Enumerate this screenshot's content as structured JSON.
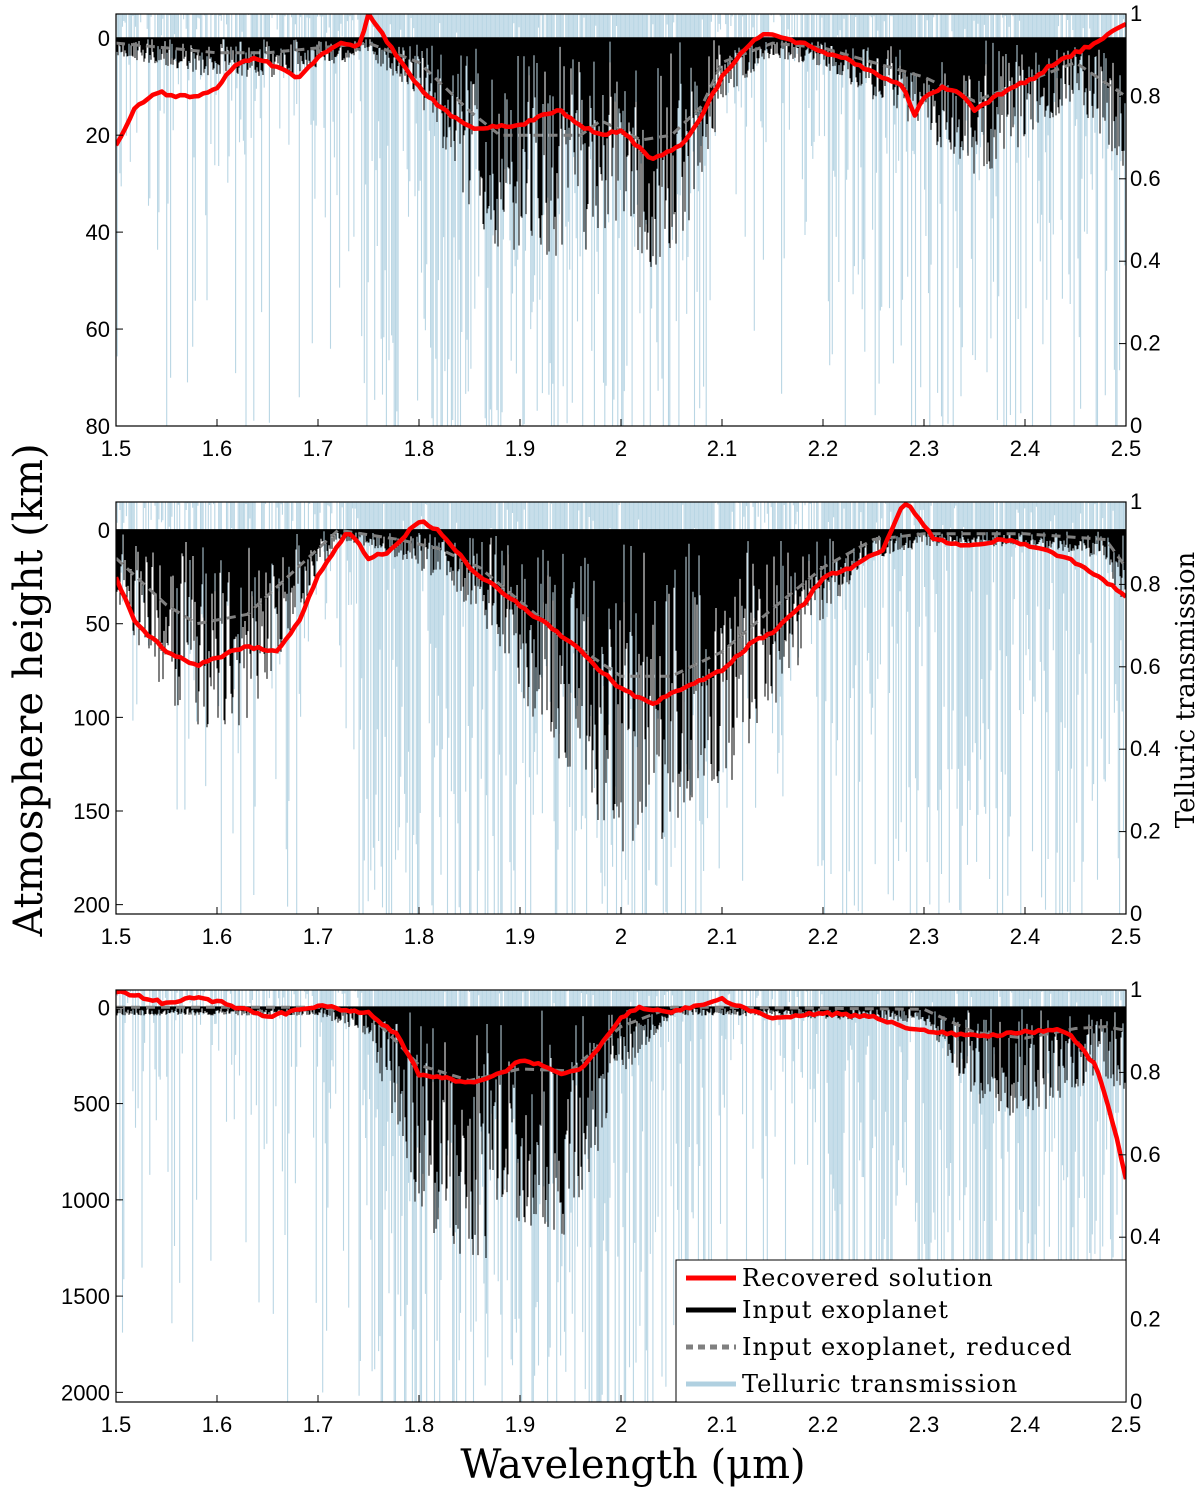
{
  "figure": {
    "ylabel_left": "Atmosphere height (km)",
    "ylabel_right": "Telluric transmission",
    "xlabel": "Wavelength (μm)"
  },
  "legend": {
    "items": [
      {
        "label": "Recovered solution",
        "color": "#ff0000",
        "style": "solid"
      },
      {
        "label": "Input exoplanet",
        "color": "#000000",
        "style": "solid"
      },
      {
        "label": "Input exoplanet, reduced",
        "color": "#808080",
        "style": "dashed"
      },
      {
        "label": "Telluric transmission",
        "color": "#b0d0e0",
        "style": "solid"
      }
    ]
  },
  "chart_data": [
    {
      "type": "line",
      "xlim": [
        1.5,
        2.5
      ],
      "xticks": [
        "1.5",
        "1.6",
        "1.7",
        "1.8",
        "1.9",
        "2",
        "2.1",
        "2.2",
        "2.3",
        "2.4",
        "2.5"
      ],
      "ylim_left": [
        80,
        -5
      ],
      "yticks_left": [
        "0",
        "20",
        "40",
        "60",
        "80"
      ],
      "ylim_right": [
        0,
        1
      ],
      "yticks_right": [
        "0",
        "0.2",
        "0.4",
        "0.6",
        "0.8",
        "1"
      ],
      "series": [
        {
          "name": "Recovered solution",
          "x": [
            1.5,
            1.52,
            1.54,
            1.56,
            1.58,
            1.6,
            1.62,
            1.64,
            1.66,
            1.68,
            1.7,
            1.72,
            1.74,
            1.75,
            1.76,
            1.78,
            1.8,
            1.82,
            1.84,
            1.86,
            1.88,
            1.9,
            1.92,
            1.94,
            1.96,
            1.98,
            2.0,
            2.02,
            2.03,
            2.06,
            2.08,
            2.1,
            2.12,
            2.14,
            2.16,
            2.18,
            2.2,
            2.22,
            2.24,
            2.26,
            2.28,
            2.29,
            2.3,
            2.32,
            2.34,
            2.35,
            2.37,
            2.39,
            2.41,
            2.43,
            2.45,
            2.47,
            2.49,
            2.5
          ],
          "y": [
            22,
            14,
            11,
            12,
            12,
            10,
            5,
            4,
            6,
            8,
            4,
            1,
            2,
            -5,
            -2,
            4,
            10,
            14,
            17,
            19,
            18,
            18,
            16,
            15,
            18,
            20,
            19,
            23,
            25,
            22,
            16,
            8,
            3,
            -1,
            0,
            1,
            3,
            4,
            6,
            8,
            10,
            16,
            12,
            10,
            12,
            15,
            12,
            10,
            8,
            5,
            3,
            1,
            -2,
            -3
          ]
        },
        {
          "name": "Input exoplanet, reduced",
          "x": [
            1.5,
            1.55,
            1.6,
            1.65,
            1.7,
            1.75,
            1.8,
            1.85,
            1.88,
            1.92,
            1.96,
            1.98,
            2.0,
            2.02,
            2.05,
            2.08,
            2.1,
            2.15,
            2.2,
            2.25,
            2.3,
            2.35,
            2.4,
            2.45,
            2.5
          ],
          "y": [
            1,
            2,
            3,
            3,
            2,
            1,
            5,
            15,
            20,
            20,
            20,
            17,
            19,
            21,
            20,
            14,
            5,
            1,
            2,
            5,
            8,
            13,
            9,
            5,
            12
          ]
        }
      ]
    },
    {
      "type": "line",
      "xlim": [
        1.5,
        2.5
      ],
      "xticks": [
        "1.5",
        "1.6",
        "1.7",
        "1.8",
        "1.9",
        "2",
        "2.1",
        "2.2",
        "2.3",
        "2.4",
        "2.5"
      ],
      "ylim_left": [
        205,
        -15
      ],
      "yticks_left": [
        "0",
        "50",
        "100",
        "150",
        "200"
      ],
      "ylim_right": [
        0,
        1
      ],
      "yticks_right": [
        "0",
        "0.2",
        "0.4",
        "0.6",
        "0.8",
        "1"
      ],
      "series": [
        {
          "name": "Recovered solution",
          "x": [
            1.5,
            1.52,
            1.55,
            1.58,
            1.6,
            1.63,
            1.66,
            1.68,
            1.7,
            1.73,
            1.75,
            1.77,
            1.8,
            1.82,
            1.85,
            1.9,
            1.95,
            2.0,
            2.03,
            2.06,
            2.1,
            2.13,
            2.15,
            2.18,
            2.2,
            2.23,
            2.26,
            2.28,
            2.29,
            2.31,
            2.34,
            2.38,
            2.42,
            2.46,
            2.5
          ],
          "y": [
            25,
            50,
            65,
            72,
            68,
            62,
            65,
            50,
            25,
            0,
            15,
            12,
            -5,
            0,
            20,
            40,
            60,
            85,
            93,
            85,
            75,
            60,
            55,
            40,
            25,
            20,
            10,
            -15,
            -10,
            5,
            8,
            5,
            10,
            20,
            35
          ]
        },
        {
          "name": "Input exoplanet, reduced",
          "x": [
            1.5,
            1.55,
            1.58,
            1.63,
            1.68,
            1.72,
            1.78,
            1.82,
            1.86,
            1.9,
            1.95,
            2.0,
            2.05,
            2.1,
            2.15,
            2.2,
            2.25,
            2.3,
            2.4,
            2.48,
            2.5
          ],
          "y": [
            15,
            40,
            50,
            45,
            20,
            0,
            5,
            10,
            20,
            38,
            60,
            78,
            78,
            65,
            42,
            20,
            5,
            2,
            2,
            5,
            20
          ]
        }
      ]
    },
    {
      "type": "line",
      "xlim": [
        1.5,
        2.5
      ],
      "xticks": [
        "1.5",
        "1.6",
        "1.7",
        "1.8",
        "1.9",
        "2",
        "2.1",
        "2.2",
        "2.3",
        "2.4",
        "2.5"
      ],
      "ylim_left": [
        2050,
        -90
      ],
      "yticks_left": [
        "0",
        "500",
        "1000",
        "1500",
        "2000"
      ],
      "ylim_right": [
        0,
        1
      ],
      "yticks_right": [
        "0",
        "0.2",
        "0.4",
        "0.6",
        "0.8",
        "1"
      ],
      "series": [
        {
          "name": "Recovered solution",
          "x": [
            1.5,
            1.52,
            1.55,
            1.58,
            1.6,
            1.62,
            1.65,
            1.7,
            1.75,
            1.78,
            1.8,
            1.85,
            1.88,
            1.9,
            1.92,
            1.94,
            1.96,
            1.98,
            2.0,
            2.02,
            2.05,
            2.08,
            2.1,
            2.12,
            2.15,
            2.2,
            2.25,
            2.28,
            2.3,
            2.35,
            2.4,
            2.44,
            2.47,
            2.49,
            2.5
          ],
          "y": [
            -80,
            -60,
            -20,
            -50,
            -30,
            0,
            50,
            -10,
            30,
            150,
            350,
            390,
            350,
            280,
            290,
            350,
            320,
            200,
            50,
            0,
            30,
            -20,
            -40,
            0,
            50,
            30,
            50,
            100,
            120,
            150,
            130,
            120,
            300,
            650,
            900
          ]
        },
        {
          "name": "Input exoplanet, reduced",
          "x": [
            1.5,
            1.6,
            1.7,
            1.75,
            1.8,
            1.85,
            1.9,
            1.95,
            2.0,
            2.05,
            2.1,
            2.2,
            2.3,
            2.35,
            2.4,
            2.45,
            2.48,
            2.5
          ],
          "y": [
            0,
            0,
            0,
            30,
            300,
            380,
            320,
            330,
            100,
            0,
            0,
            5,
            10,
            130,
            160,
            110,
            100,
            120
          ]
        }
      ]
    }
  ]
}
